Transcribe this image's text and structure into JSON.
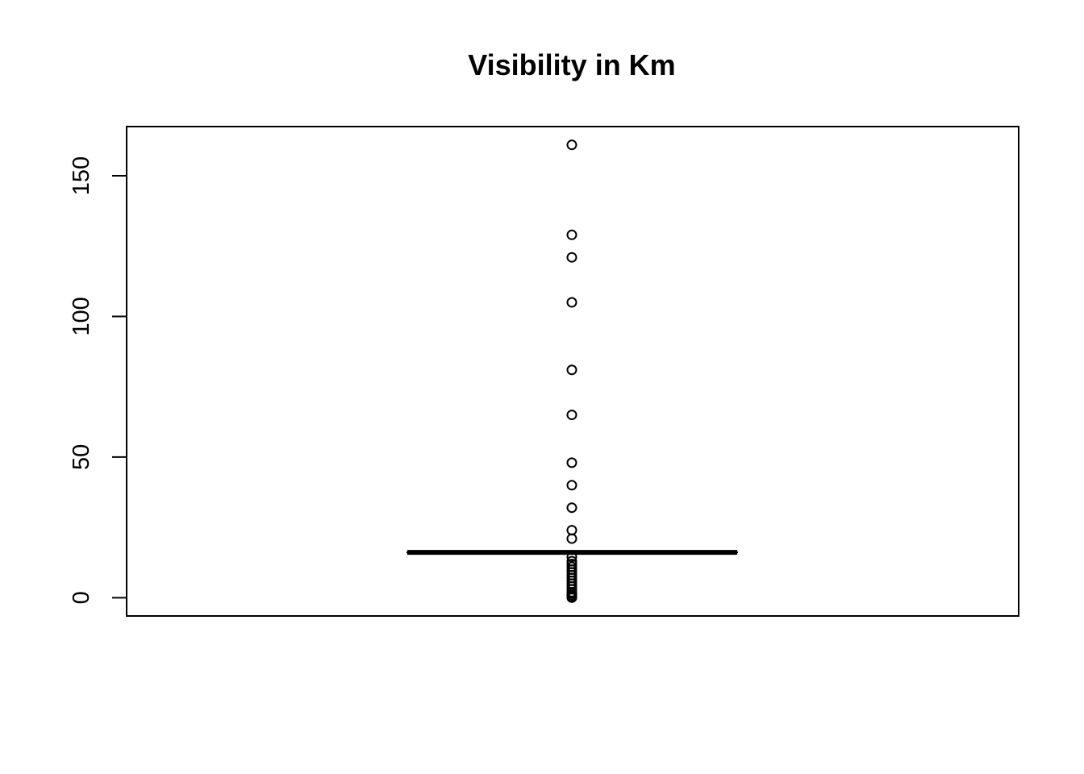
{
  "chart_data": {
    "type": "boxplot",
    "title": "Visibility in Km",
    "xlabel": "",
    "ylabel": "",
    "ylim": [
      -6.5,
      167.5
    ],
    "yticks": [
      0,
      50,
      100,
      150
    ],
    "ytick_labels": [
      "0",
      "50",
      "100",
      "150"
    ],
    "grid": false,
    "box": {
      "q1": 16.1,
      "median": 16.1,
      "q3": 16.1,
      "whisker_low": 16.1,
      "whisker_high": 16.1
    },
    "outliers": [
      161,
      129,
      121,
      105,
      81,
      65,
      48,
      40,
      32,
      24,
      21,
      14.5,
      13,
      12,
      11,
      10,
      9,
      8,
      7,
      6,
      5,
      4,
      3,
      2,
      1.6,
      1,
      0.8,
      0.4,
      0.2,
      0
    ]
  }
}
